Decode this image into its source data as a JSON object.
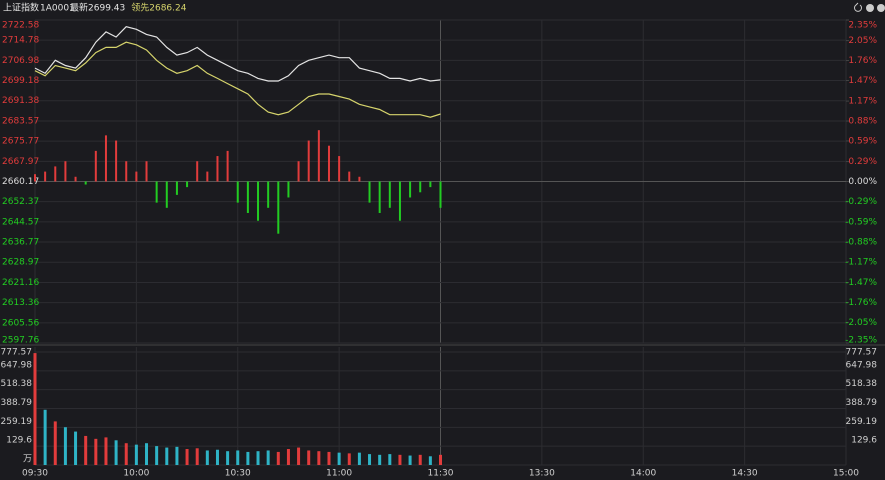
{
  "header": {
    "title": "上证指数",
    "code": "1A0001"
  },
  "chart_data": [
    {
      "type": "line",
      "x": [
        0,
        3,
        6,
        9,
        12,
        15,
        18,
        21,
        24,
        27,
        30,
        33,
        36,
        39,
        42,
        45,
        48,
        51,
        54,
        57,
        60,
        63,
        66,
        69,
        72,
        75,
        78,
        81,
        84,
        87,
        90,
        93,
        96,
        99,
        102,
        105,
        108,
        111,
        114,
        117,
        120
      ],
      "xlim": [
        0,
        240
      ],
      "ylim": [
        2597.76,
        2722.58
      ],
      "yticks": [
        2722.58,
        2714.78,
        2706.98,
        2699.18,
        2691.38,
        2683.57,
        2675.77,
        2667.97,
        2660.17,
        2652.37,
        2644.57,
        2636.77,
        2628.97,
        2621.16,
        2613.36,
        2605.56,
        2597.76
      ],
      "y2lim": [
        -2.35,
        2.35
      ],
      "y2ticks": [
        {
          "value": 2.35,
          "label": "2.35%"
        },
        {
          "value": 2.05,
          "label": "2.05%"
        },
        {
          "value": 1.76,
          "label": "1.76%"
        },
        {
          "value": 1.47,
          "label": "1.47%"
        },
        {
          "value": 1.17,
          "label": "1.17%"
        },
        {
          "value": 0.88,
          "label": "0.88%"
        },
        {
          "value": 0.59,
          "label": "0.59%"
        },
        {
          "value": 0.29,
          "label": "0.29%"
        },
        {
          "value": 0,
          "label": "0.00%"
        },
        {
          "value": -0.29,
          "label": "-0.29%"
        },
        {
          "value": -0.59,
          "label": "-0.59%"
        },
        {
          "value": -0.88,
          "label": "-0.88%"
        },
        {
          "value": -1.17,
          "label": "-1.17%"
        },
        {
          "value": -1.47,
          "label": "-1.47%"
        },
        {
          "value": -1.76,
          "label": "-1.76%"
        },
        {
          "value": -2.05,
          "label": "-2.05%"
        },
        {
          "value": -2.35,
          "label": "-2.35%"
        }
      ],
      "up_color": "#e23c3c",
      "down_color": "#22cc22",
      "flat_color": "#dddddd",
      "series": [
        {
          "name": "最新",
          "color": "#e4e4e4",
          "values": [
            2704,
            2702,
            2707,
            2705,
            2704,
            2708,
            2714,
            2718,
            2716,
            2720,
            2719,
            2717,
            2716,
            2712,
            2709,
            2710,
            2712,
            2709,
            2707,
            2705,
            2703,
            2702,
            2700,
            2699,
            2699,
            2701,
            2705,
            2707,
            2708,
            2709,
            2708,
            2708,
            2704,
            2703,
            2702,
            2700,
            2700,
            2699,
            2700,
            2699,
            2699.43
          ]
        },
        {
          "name": "领先",
          "color": "#d6d46c",
          "values": [
            2703,
            2701,
            2705,
            2704,
            2703,
            2706,
            2710,
            2712,
            2712,
            2714,
            2713,
            2711,
            2707,
            2704,
            2702,
            2703,
            2705,
            2702,
            2700,
            2698,
            2696,
            2694,
            2690,
            2687,
            2686,
            2687,
            2690,
            2693,
            2694,
            2694,
            2693,
            2692,
            2690,
            2689,
            2688,
            2686,
            2686,
            2686,
            2686,
            2685,
            2686.24
          ]
        }
      ],
      "bars": [
        2663,
        2664,
        2666,
        2668,
        2662,
        2659,
        2672,
        2678,
        2676,
        2668,
        2664,
        2668,
        2652,
        2650,
        2655,
        2658,
        2668,
        2664,
        2670,
        2672,
        2652,
        2648,
        2645,
        2650,
        2640,
        2654,
        2668,
        2676,
        2680,
        2674,
        2670,
        2664,
        2662,
        2652,
        2648,
        2650,
        2645,
        2654,
        2656,
        2658,
        2650
      ]
    },
    {
      "type": "bar",
      "x": [
        0,
        3,
        6,
        9,
        12,
        15,
        18,
        21,
        24,
        27,
        30,
        33,
        36,
        39,
        42,
        45,
        48,
        51,
        54,
        57,
        60,
        63,
        66,
        69,
        72,
        75,
        78,
        81,
        84,
        87,
        90,
        93,
        96,
        99,
        102,
        105,
        108,
        111,
        114,
        117,
        120
      ],
      "xlim": [
        0,
        240
      ],
      "xticks": [
        {
          "value": 0,
          "label": "09:30"
        },
        {
          "value": 30,
          "label": "10:00"
        },
        {
          "value": 60,
          "label": "10:30"
        },
        {
          "value": 90,
          "label": "11:00"
        },
        {
          "value": 120,
          "label": "11:30"
        },
        {
          "value": 150,
          "label": "13:30"
        },
        {
          "value": 180,
          "label": "14:00"
        },
        {
          "value": 210,
          "label": "14:30"
        },
        {
          "value": 240,
          "label": "15:00"
        }
      ],
      "ylim": [
        0,
        777.57
      ],
      "yticks": [
        {
          "value": 0,
          "label": "万"
        },
        129.6,
        259.19,
        388.79,
        518.38,
        647.98,
        777.57
      ],
      "up_color": "#e23c3c",
      "down_color": "#2fb4c6",
      "values": [
        770,
        380,
        300,
        260,
        230,
        200,
        180,
        190,
        170,
        150,
        140,
        150,
        130,
        120,
        125,
        110,
        115,
        100,
        105,
        95,
        100,
        90,
        95,
        100,
        90,
        110,
        120,
        100,
        95,
        90,
        85,
        80,
        85,
        75,
        70,
        75,
        70,
        65,
        70,
        60,
        70
      ]
    }
  ]
}
